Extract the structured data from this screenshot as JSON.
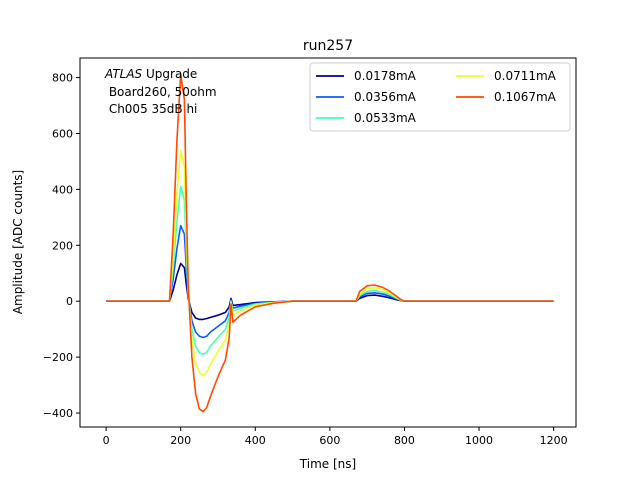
{
  "chart_data": {
    "type": "line",
    "title": "run257",
    "xlabel": "Time [ns]",
    "ylabel": "Amplitude [ADC counts]",
    "xlim": [
      -70,
      1260
    ],
    "ylim": [
      -450,
      870
    ],
    "xticks": [
      0,
      200,
      400,
      600,
      800,
      1000,
      1200
    ],
    "yticks": [
      -400,
      -200,
      0,
      200,
      400,
      600,
      800
    ],
    "xtick_labels": [
      "0",
      "200",
      "400",
      "600",
      "800",
      "1000",
      "1200"
    ],
    "ytick_labels": [
      "−400",
      "−200",
      "0",
      "200",
      "400",
      "600",
      "800"
    ],
    "grid": false,
    "legend_position": "top-right",
    "annotation": {
      "line1_italic": "ATLAS",
      "line1_rest": " Upgrade",
      "line2": " Board260, 50ohm",
      "line3": " Ch005 35dB hi"
    },
    "x": [
      0,
      170,
      180,
      190,
      200,
      210,
      215,
      220,
      230,
      240,
      250,
      260,
      270,
      280,
      300,
      320,
      330,
      335,
      340,
      360,
      400,
      450,
      500,
      600,
      670,
      680,
      700,
      720,
      740,
      760,
      780,
      790,
      800,
      850,
      1000,
      1200
    ],
    "series": [
      {
        "name": "0.0178mA",
        "color": "#00008f",
        "values": [
          0,
          0,
          40,
          95,
          135,
          120,
          60,
          10,
          -40,
          -60,
          -65,
          -65,
          -62,
          -58,
          -50,
          -40,
          -20,
          10,
          -15,
          -12,
          -5,
          -2,
          0,
          0,
          0,
          10,
          20,
          22,
          18,
          12,
          5,
          2,
          0,
          0,
          0,
          0
        ]
      },
      {
        "name": "0.0356mA",
        "color": "#0a5cff",
        "values": [
          0,
          0,
          80,
          190,
          270,
          240,
          120,
          20,
          -70,
          -110,
          -125,
          -130,
          -125,
          -110,
          -90,
          -70,
          -40,
          5,
          -25,
          -18,
          -8,
          -3,
          0,
          0,
          0,
          15,
          28,
          30,
          26,
          18,
          8,
          3,
          0,
          0,
          0,
          0
        ]
      },
      {
        "name": "0.0533mA",
        "color": "#4cffb0",
        "values": [
          0,
          0,
          120,
          290,
          410,
          360,
          180,
          30,
          -100,
          -160,
          -185,
          -190,
          -182,
          -160,
          -130,
          -100,
          -60,
          0,
          -35,
          -25,
          -10,
          -4,
          0,
          0,
          0,
          20,
          35,
          38,
          33,
          24,
          10,
          4,
          0,
          0,
          0,
          0
        ]
      },
      {
        "name": "0.0711mA",
        "color": "#e8ff2e",
        "values": [
          0,
          0,
          160,
          390,
          540,
          480,
          240,
          40,
          -140,
          -220,
          -255,
          -265,
          -255,
          -225,
          -180,
          -140,
          -85,
          -5,
          -50,
          -35,
          -14,
          -5,
          0,
          0,
          0,
          25,
          45,
          48,
          42,
          30,
          13,
          5,
          0,
          0,
          0,
          0
        ]
      },
      {
        "name": "0.1067mA",
        "color": "#ff4a00",
        "values": [
          0,
          0,
          240,
          580,
          810,
          720,
          360,
          60,
          -200,
          -330,
          -385,
          -395,
          -380,
          -340,
          -270,
          -210,
          -130,
          -10,
          -75,
          -50,
          -20,
          -7,
          0,
          0,
          0,
          35,
          55,
          58,
          50,
          36,
          16,
          6,
          0,
          0,
          0,
          0
        ]
      }
    ]
  }
}
